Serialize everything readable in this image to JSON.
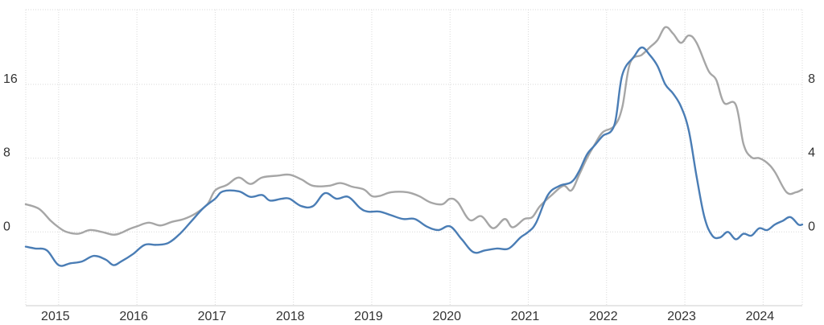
{
  "chart_data": {
    "type": "line",
    "grid": true,
    "legend": "none",
    "x_range": [
      2014.58,
      2024.5
    ],
    "y_left": {
      "ticks": [
        0,
        8,
        16
      ],
      "tick_labels": [
        "0",
        "8",
        "16"
      ],
      "range": [
        -8,
        24.1
      ]
    },
    "y_right": {
      "ticks": [
        0,
        4,
        8
      ],
      "tick_labels": [
        "0",
        "4",
        "8"
      ],
      "range": [
        -4,
        12.05
      ]
    },
    "x_ticks": [
      2015,
      2016,
      2017,
      2018,
      2019,
      2020,
      2021,
      2022,
      2023,
      2024
    ],
    "x_tick_labels": [
      "2015",
      "2016",
      "2017",
      "2018",
      "2019",
      "2020",
      "2021",
      "2022",
      "2023",
      "2024"
    ],
    "series": [
      {
        "axis": "left",
        "color": "#a6a6a6",
        "points": [
          [
            2014.58,
            3.0
          ],
          [
            2014.75,
            2.5
          ],
          [
            2014.9,
            1.2
          ],
          [
            2015.0,
            0.5
          ],
          [
            2015.1,
            0.0
          ],
          [
            2015.25,
            -0.2
          ],
          [
            2015.4,
            0.2
          ],
          [
            2015.55,
            0.0
          ],
          [
            2015.7,
            -0.3
          ],
          [
            2015.8,
            -0.1
          ],
          [
            2015.9,
            0.3
          ],
          [
            2016.0,
            0.6
          ],
          [
            2016.15,
            1.0
          ],
          [
            2016.3,
            0.7
          ],
          [
            2016.45,
            1.1
          ],
          [
            2016.6,
            1.4
          ],
          [
            2016.75,
            2.0
          ],
          [
            2016.9,
            3.0
          ],
          [
            2017.0,
            4.5
          ],
          [
            2017.15,
            5.1
          ],
          [
            2017.3,
            5.9
          ],
          [
            2017.45,
            5.2
          ],
          [
            2017.6,
            5.9
          ],
          [
            2017.8,
            6.1
          ],
          [
            2017.95,
            6.2
          ],
          [
            2018.1,
            5.7
          ],
          [
            2018.25,
            5.0
          ],
          [
            2018.45,
            5.0
          ],
          [
            2018.6,
            5.3
          ],
          [
            2018.75,
            4.9
          ],
          [
            2018.9,
            4.6
          ],
          [
            2019.0,
            3.9
          ],
          [
            2019.1,
            3.9
          ],
          [
            2019.25,
            4.3
          ],
          [
            2019.45,
            4.3
          ],
          [
            2019.6,
            3.9
          ],
          [
            2019.75,
            3.2
          ],
          [
            2019.9,
            3.0
          ],
          [
            2020.0,
            3.6
          ],
          [
            2020.1,
            3.2
          ],
          [
            2020.25,
            1.3
          ],
          [
            2020.4,
            1.7
          ],
          [
            2020.55,
            0.4
          ],
          [
            2020.7,
            1.4
          ],
          [
            2020.8,
            0.5
          ],
          [
            2020.95,
            1.4
          ],
          [
            2021.05,
            1.6
          ],
          [
            2021.15,
            2.8
          ],
          [
            2021.3,
            4.0
          ],
          [
            2021.45,
            5.0
          ],
          [
            2021.55,
            4.5
          ],
          [
            2021.65,
            6.2
          ],
          [
            2021.75,
            8.0
          ],
          [
            2021.85,
            9.5
          ],
          [
            2021.95,
            10.8
          ],
          [
            2022.1,
            11.5
          ],
          [
            2022.2,
            13.5
          ],
          [
            2022.3,
            18.3
          ],
          [
            2022.45,
            19.2
          ],
          [
            2022.55,
            20.0
          ],
          [
            2022.65,
            20.8
          ],
          [
            2022.75,
            22.2
          ],
          [
            2022.85,
            21.5
          ],
          [
            2022.95,
            20.5
          ],
          [
            2023.05,
            21.3
          ],
          [
            2023.15,
            20.5
          ],
          [
            2023.3,
            17.5
          ],
          [
            2023.4,
            16.5
          ],
          [
            2023.5,
            14.0
          ],
          [
            2023.65,
            13.8
          ],
          [
            2023.75,
            9.5
          ],
          [
            2023.85,
            8.1
          ],
          [
            2023.95,
            8.0
          ],
          [
            2024.05,
            7.5
          ],
          [
            2024.15,
            6.5
          ],
          [
            2024.3,
            4.3
          ],
          [
            2024.42,
            4.3
          ],
          [
            2024.5,
            4.6
          ]
        ]
      },
      {
        "axis": "right",
        "color": "#4a7db5",
        "points": [
          [
            2014.58,
            -0.8
          ],
          [
            2014.7,
            -0.9
          ],
          [
            2014.85,
            -1.0
          ],
          [
            2015.0,
            -1.8
          ],
          [
            2015.15,
            -1.7
          ],
          [
            2015.3,
            -1.6
          ],
          [
            2015.45,
            -1.3
          ],
          [
            2015.6,
            -1.5
          ],
          [
            2015.7,
            -1.8
          ],
          [
            2015.8,
            -1.6
          ],
          [
            2015.95,
            -1.2
          ],
          [
            2016.1,
            -0.7
          ],
          [
            2016.25,
            -0.7
          ],
          [
            2016.4,
            -0.6
          ],
          [
            2016.55,
            -0.1
          ],
          [
            2016.7,
            0.6
          ],
          [
            2016.85,
            1.3
          ],
          [
            2017.0,
            1.8
          ],
          [
            2017.1,
            2.2
          ],
          [
            2017.3,
            2.2
          ],
          [
            2017.45,
            1.9
          ],
          [
            2017.6,
            2.0
          ],
          [
            2017.7,
            1.7
          ],
          [
            2017.85,
            1.8
          ],
          [
            2017.95,
            1.8
          ],
          [
            2018.1,
            1.4
          ],
          [
            2018.25,
            1.4
          ],
          [
            2018.4,
            2.1
          ],
          [
            2018.55,
            1.8
          ],
          [
            2018.7,
            1.9
          ],
          [
            2018.85,
            1.3
          ],
          [
            2018.95,
            1.1
          ],
          [
            2019.1,
            1.1
          ],
          [
            2019.25,
            0.9
          ],
          [
            2019.4,
            0.7
          ],
          [
            2019.55,
            0.7
          ],
          [
            2019.7,
            0.3
          ],
          [
            2019.85,
            0.1
          ],
          [
            2020.0,
            0.3
          ],
          [
            2020.15,
            -0.4
          ],
          [
            2020.3,
            -1.1
          ],
          [
            2020.45,
            -1.0
          ],
          [
            2020.6,
            -0.9
          ],
          [
            2020.75,
            -0.9
          ],
          [
            2020.9,
            -0.3
          ],
          [
            2021.0,
            0.0
          ],
          [
            2021.1,
            0.5
          ],
          [
            2021.25,
            2.0
          ],
          [
            2021.4,
            2.5
          ],
          [
            2021.55,
            2.7
          ],
          [
            2021.65,
            3.3
          ],
          [
            2021.75,
            4.2
          ],
          [
            2021.85,
            4.7
          ],
          [
            2021.95,
            5.2
          ],
          [
            2022.1,
            5.8
          ],
          [
            2022.2,
            8.5
          ],
          [
            2022.35,
            9.5
          ],
          [
            2022.45,
            10.0
          ],
          [
            2022.55,
            9.6
          ],
          [
            2022.65,
            9.0
          ],
          [
            2022.75,
            8.0
          ],
          [
            2022.85,
            7.5
          ],
          [
            2022.95,
            6.8
          ],
          [
            2023.05,
            5.5
          ],
          [
            2023.15,
            3.0
          ],
          [
            2023.25,
            0.8
          ],
          [
            2023.35,
            -0.2
          ],
          [
            2023.45,
            -0.3
          ],
          [
            2023.55,
            0.0
          ],
          [
            2023.65,
            -0.4
          ],
          [
            2023.75,
            -0.1
          ],
          [
            2023.85,
            -0.2
          ],
          [
            2023.95,
            0.2
          ],
          [
            2024.05,
            0.1
          ],
          [
            2024.15,
            0.4
          ],
          [
            2024.25,
            0.6
          ],
          [
            2024.35,
            0.8
          ],
          [
            2024.45,
            0.4
          ],
          [
            2024.5,
            0.4
          ]
        ]
      }
    ]
  }
}
